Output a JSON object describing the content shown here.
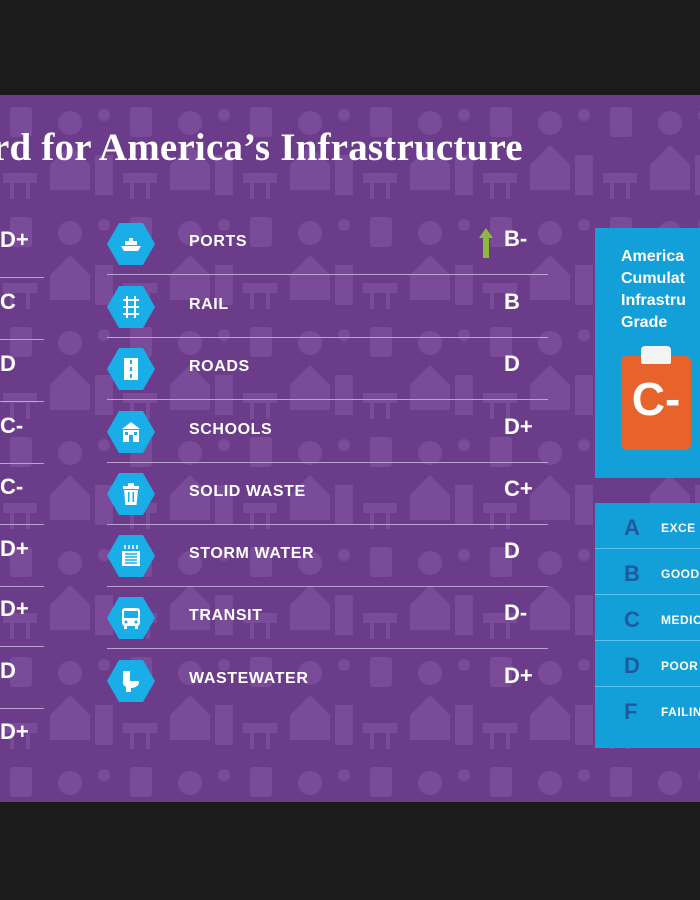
{
  "title": "rd for America’s Infrastructure",
  "left_grades": [
    "D+",
    "C",
    "D",
    "C-",
    "C-",
    "D+",
    "D+",
    "D",
    "D+"
  ],
  "categories": [
    {
      "name": "PORTS",
      "grade": "B-",
      "icon": "ship-icon",
      "improved": true
    },
    {
      "name": "RAIL",
      "grade": "B",
      "icon": "rail-icon",
      "improved": false
    },
    {
      "name": "ROADS",
      "grade": "D",
      "icon": "road-icon",
      "improved": false
    },
    {
      "name": "SCHOOLS",
      "grade": "D+",
      "icon": "school-icon",
      "improved": false
    },
    {
      "name": "SOLID WASTE",
      "grade": "C+",
      "icon": "trash-can-icon",
      "improved": false
    },
    {
      "name": "STORM WATER",
      "grade": "D",
      "icon": "storm-drain-icon",
      "improved": false
    },
    {
      "name": "TRANSIT",
      "grade": "D-",
      "icon": "bus-icon",
      "improved": false
    },
    {
      "name": "WASTEWATER",
      "grade": "D+",
      "icon": "toilet-icon",
      "improved": false
    }
  ],
  "cumulative": {
    "title_lines": [
      "America",
      "Cumulat",
      "Infrastru",
      "Grade"
    ],
    "grade": "C-"
  },
  "legend": [
    {
      "letter": "A",
      "word": "EXCE"
    },
    {
      "letter": "B",
      "word": "GOOD"
    },
    {
      "letter": "C",
      "word": "MEDIC"
    },
    {
      "letter": "D",
      "word": "POOR"
    },
    {
      "letter": "F",
      "word": "FAILIN"
    }
  ],
  "colors": {
    "background": "#6b3c8a",
    "icon_hex": "#19aee8",
    "panel": "#139fd8",
    "clipboard": "#e8622c",
    "arrow": "#8db83c",
    "legend_letter": "#1f5aa0"
  }
}
